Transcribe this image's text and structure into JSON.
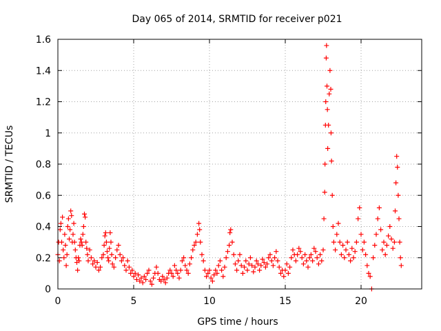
{
  "chart_data": {
    "type": "scatter",
    "title": "Day 065 of 2014, SRMTID for receiver p021",
    "xlabel": "GPS time / hours",
    "ylabel": "SRMTID / TECUs",
    "xlim": [
      0,
      24
    ],
    "ylim": [
      0,
      1.6
    ],
    "xticks": [
      0,
      5,
      10,
      15,
      20
    ],
    "yticks": [
      0,
      0.2,
      0.4,
      0.6,
      0.8,
      1,
      1.2,
      1.4,
      1.6
    ],
    "ytick_labels": [
      "0",
      "0.2",
      "0.4",
      "0.6",
      "0.8",
      "1",
      "1.2",
      "1.4",
      "1.6"
    ],
    "grid": true,
    "marker": "+",
    "color": "#ff0000",
    "series": [
      {
        "name": "SRMTID",
        "points": [
          [
            0.0,
            0.22
          ],
          [
            0.05,
            0.3
          ],
          [
            0.1,
            0.18
          ],
          [
            0.15,
            0.38
          ],
          [
            0.2,
            0.42
          ],
          [
            0.25,
            0.3
          ],
          [
            0.3,
            0.46
          ],
          [
            0.35,
            0.25
          ],
          [
            0.4,
            0.2
          ],
          [
            0.45,
            0.35
          ],
          [
            0.5,
            0.28
          ],
          [
            0.55,
            0.15
          ],
          [
            0.6,
            0.22
          ],
          [
            0.65,
            0.4
          ],
          [
            0.7,
            0.45
          ],
          [
            0.75,
            0.32
          ],
          [
            0.8,
            0.38
          ],
          [
            0.85,
            0.5
          ],
          [
            0.9,
            0.47
          ],
          [
            0.95,
            0.3
          ],
          [
            1.0,
            0.35
          ],
          [
            1.05,
            0.42
          ],
          [
            1.1,
            0.3
          ],
          [
            1.15,
            0.25
          ],
          [
            1.2,
            0.2
          ],
          [
            1.25,
            0.17
          ],
          [
            1.3,
            0.12
          ],
          [
            1.35,
            0.2
          ],
          [
            1.4,
            0.18
          ],
          [
            1.45,
            0.28
          ],
          [
            1.5,
            0.32
          ],
          [
            1.55,
            0.3
          ],
          [
            1.6,
            0.28
          ],
          [
            1.65,
            0.35
          ],
          [
            1.7,
            0.4
          ],
          [
            1.75,
            0.48
          ],
          [
            1.8,
            0.46
          ],
          [
            1.85,
            0.3
          ],
          [
            1.9,
            0.26
          ],
          [
            1.95,
            0.22
          ],
          [
            2.0,
            0.18
          ],
          [
            2.1,
            0.25
          ],
          [
            2.2,
            0.2
          ],
          [
            2.3,
            0.16
          ],
          [
            2.4,
            0.18
          ],
          [
            2.5,
            0.14
          ],
          [
            2.6,
            0.17
          ],
          [
            2.7,
            0.12
          ],
          [
            2.8,
            0.14
          ],
          [
            2.9,
            0.2
          ],
          [
            3.0,
            0.22
          ],
          [
            3.05,
            0.28
          ],
          [
            3.1,
            0.34
          ],
          [
            3.15,
            0.36
          ],
          [
            3.2,
            0.3
          ],
          [
            3.25,
            0.24
          ],
          [
            3.3,
            0.2
          ],
          [
            3.35,
            0.18
          ],
          [
            3.4,
            0.26
          ],
          [
            3.45,
            0.36
          ],
          [
            3.5,
            0.3
          ],
          [
            3.55,
            0.22
          ],
          [
            3.6,
            0.16
          ],
          [
            3.7,
            0.14
          ],
          [
            3.8,
            0.2
          ],
          [
            3.9,
            0.25
          ],
          [
            4.0,
            0.28
          ],
          [
            4.1,
            0.22
          ],
          [
            4.2,
            0.18
          ],
          [
            4.3,
            0.2
          ],
          [
            4.4,
            0.15
          ],
          [
            4.5,
            0.12
          ],
          [
            4.6,
            0.18
          ],
          [
            4.7,
            0.14
          ],
          [
            4.8,
            0.1
          ],
          [
            4.9,
            0.12
          ],
          [
            5.0,
            0.08
          ],
          [
            5.1,
            0.1
          ],
          [
            5.2,
            0.06
          ],
          [
            5.3,
            0.09
          ],
          [
            5.4,
            0.05
          ],
          [
            5.5,
            0.07
          ],
          [
            5.6,
            0.04
          ],
          [
            5.7,
            0.08
          ],
          [
            5.8,
            0.06
          ],
          [
            5.9,
            0.1
          ],
          [
            6.0,
            0.12
          ],
          [
            6.1,
            0.05
          ],
          [
            6.2,
            0.03
          ],
          [
            6.3,
            0.07
          ],
          [
            6.4,
            0.1
          ],
          [
            6.5,
            0.14
          ],
          [
            6.6,
            0.1
          ],
          [
            6.7,
            0.06
          ],
          [
            6.8,
            0.05
          ],
          [
            6.9,
            0.08
          ],
          [
            7.0,
            0.06
          ],
          [
            7.1,
            0.04
          ],
          [
            7.2,
            0.07
          ],
          [
            7.3,
            0.1
          ],
          [
            7.4,
            0.12
          ],
          [
            7.5,
            0.1
          ],
          [
            7.6,
            0.08
          ],
          [
            7.7,
            0.15
          ],
          [
            7.8,
            0.12
          ],
          [
            7.9,
            0.1
          ],
          [
            8.0,
            0.07
          ],
          [
            8.1,
            0.12
          ],
          [
            8.2,
            0.18
          ],
          [
            8.3,
            0.2
          ],
          [
            8.4,
            0.15
          ],
          [
            8.5,
            0.12
          ],
          [
            8.6,
            0.1
          ],
          [
            8.7,
            0.16
          ],
          [
            8.8,
            0.2
          ],
          [
            8.9,
            0.25
          ],
          [
            9.0,
            0.28
          ],
          [
            9.1,
            0.3
          ],
          [
            9.2,
            0.35
          ],
          [
            9.3,
            0.42
          ],
          [
            9.35,
            0.38
          ],
          [
            9.4,
            0.3
          ],
          [
            9.5,
            0.22
          ],
          [
            9.6,
            0.18
          ],
          [
            9.7,
            0.12
          ],
          [
            9.8,
            0.08
          ],
          [
            9.9,
            0.1
          ],
          [
            10.0,
            0.12
          ],
          [
            10.1,
            0.07
          ],
          [
            10.2,
            0.05
          ],
          [
            10.3,
            0.09
          ],
          [
            10.4,
            0.12
          ],
          [
            10.5,
            0.1
          ],
          [
            10.6,
            0.15
          ],
          [
            10.7,
            0.18
          ],
          [
            10.8,
            0.12
          ],
          [
            10.9,
            0.08
          ],
          [
            11.0,
            0.14
          ],
          [
            11.1,
            0.2
          ],
          [
            11.2,
            0.24
          ],
          [
            11.3,
            0.28
          ],
          [
            11.35,
            0.36
          ],
          [
            11.4,
            0.38
          ],
          [
            11.5,
            0.3
          ],
          [
            11.6,
            0.22
          ],
          [
            11.7,
            0.16
          ],
          [
            11.8,
            0.12
          ],
          [
            11.9,
            0.18
          ],
          [
            12.0,
            0.22
          ],
          [
            12.1,
            0.15
          ],
          [
            12.2,
            0.1
          ],
          [
            12.3,
            0.14
          ],
          [
            12.4,
            0.18
          ],
          [
            12.5,
            0.12
          ],
          [
            12.6,
            0.16
          ],
          [
            12.7,
            0.2
          ],
          [
            12.8,
            0.15
          ],
          [
            12.9,
            0.11
          ],
          [
            13.0,
            0.14
          ],
          [
            13.1,
            0.18
          ],
          [
            13.2,
            0.16
          ],
          [
            13.3,
            0.12
          ],
          [
            13.4,
            0.15
          ],
          [
            13.5,
            0.19
          ],
          [
            13.6,
            0.17
          ],
          [
            13.7,
            0.14
          ],
          [
            13.8,
            0.16
          ],
          [
            13.9,
            0.2
          ],
          [
            14.0,
            0.22
          ],
          [
            14.1,
            0.18
          ],
          [
            14.2,
            0.15
          ],
          [
            14.3,
            0.2
          ],
          [
            14.4,
            0.24
          ],
          [
            14.5,
            0.18
          ],
          [
            14.6,
            0.14
          ],
          [
            14.7,
            0.1
          ],
          [
            14.8,
            0.12
          ],
          [
            14.9,
            0.08
          ],
          [
            15.0,
            0.12
          ],
          [
            15.1,
            0.16
          ],
          [
            15.2,
            0.1
          ],
          [
            15.3,
            0.14
          ],
          [
            15.4,
            0.2
          ],
          [
            15.5,
            0.25
          ],
          [
            15.6,
            0.22
          ],
          [
            15.7,
            0.18
          ],
          [
            15.8,
            0.22
          ],
          [
            15.9,
            0.26
          ],
          [
            16.0,
            0.24
          ],
          [
            16.1,
            0.2
          ],
          [
            16.2,
            0.16
          ],
          [
            16.3,
            0.22
          ],
          [
            16.4,
            0.18
          ],
          [
            16.5,
            0.14
          ],
          [
            16.6,
            0.2
          ],
          [
            16.7,
            0.22
          ],
          [
            16.8,
            0.18
          ],
          [
            16.9,
            0.26
          ],
          [
            17.0,
            0.24
          ],
          [
            17.1,
            0.2
          ],
          [
            17.2,
            0.16
          ],
          [
            17.3,
            0.22
          ],
          [
            17.4,
            0.18
          ],
          [
            17.5,
            0.25
          ],
          [
            17.55,
            0.45
          ],
          [
            17.6,
            0.62
          ],
          [
            17.62,
            0.8
          ],
          [
            17.65,
            1.05
          ],
          [
            17.67,
            1.2
          ],
          [
            17.7,
            1.48
          ],
          [
            17.72,
            1.56
          ],
          [
            17.75,
            1.3
          ],
          [
            17.78,
            1.15
          ],
          [
            17.8,
            0.9
          ],
          [
            17.85,
            1.05
          ],
          [
            17.9,
            1.25
          ],
          [
            17.95,
            1.4
          ],
          [
            18.0,
            1.28
          ],
          [
            18.02,
            1.0
          ],
          [
            18.05,
            0.82
          ],
          [
            18.1,
            0.6
          ],
          [
            18.15,
            0.4
          ],
          [
            18.2,
            0.3
          ],
          [
            18.3,
            0.25
          ],
          [
            18.4,
            0.35
          ],
          [
            18.5,
            0.42
          ],
          [
            18.6,
            0.3
          ],
          [
            18.7,
            0.22
          ],
          [
            18.8,
            0.28
          ],
          [
            18.9,
            0.2
          ],
          [
            19.0,
            0.25
          ],
          [
            19.1,
            0.3
          ],
          [
            19.2,
            0.22
          ],
          [
            19.3,
            0.18
          ],
          [
            19.4,
            0.26
          ],
          [
            19.5,
            0.2
          ],
          [
            19.6,
            0.24
          ],
          [
            19.7,
            0.3
          ],
          [
            19.8,
            0.45
          ],
          [
            19.9,
            0.52
          ],
          [
            20.0,
            0.35
          ],
          [
            20.1,
            0.25
          ],
          [
            20.2,
            0.3
          ],
          [
            20.3,
            0.22
          ],
          [
            20.4,
            0.15
          ],
          [
            20.5,
            0.1
          ],
          [
            20.6,
            0.08
          ],
          [
            20.7,
            0.0
          ],
          [
            20.8,
            0.2
          ],
          [
            20.9,
            0.28
          ],
          [
            21.0,
            0.35
          ],
          [
            21.1,
            0.45
          ],
          [
            21.2,
            0.52
          ],
          [
            21.3,
            0.38
          ],
          [
            21.4,
            0.25
          ],
          [
            21.5,
            0.3
          ],
          [
            21.6,
            0.22
          ],
          [
            21.7,
            0.28
          ],
          [
            21.8,
            0.34
          ],
          [
            21.9,
            0.4
          ],
          [
            22.0,
            0.32
          ],
          [
            22.1,
            0.26
          ],
          [
            22.2,
            0.3
          ],
          [
            22.25,
            0.5
          ],
          [
            22.3,
            0.68
          ],
          [
            22.35,
            0.85
          ],
          [
            22.4,
            0.78
          ],
          [
            22.45,
            0.6
          ],
          [
            22.5,
            0.45
          ],
          [
            22.55,
            0.3
          ],
          [
            22.6,
            0.2
          ],
          [
            22.65,
            0.15
          ]
        ]
      }
    ]
  }
}
